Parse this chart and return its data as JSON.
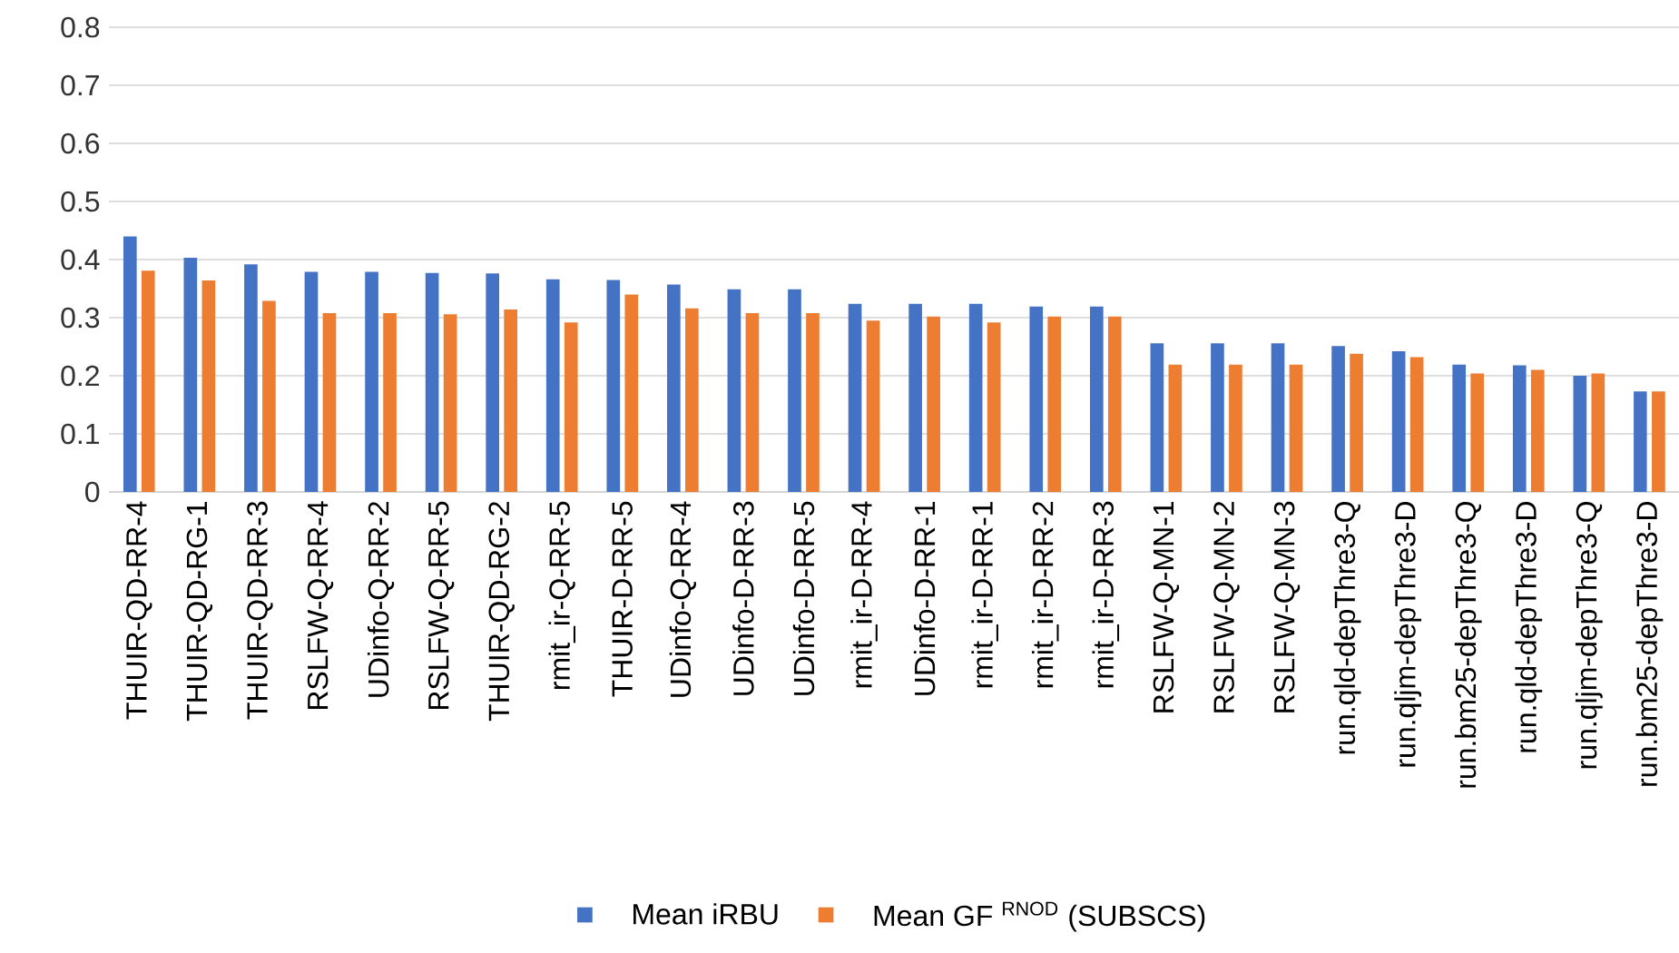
{
  "chart_data": {
    "type": "bar",
    "categories": [
      "THUIR-QD-RR-4",
      "THUIR-QD-RG-1",
      "THUIR-QD-RR-3",
      "RSLFW-Q-RR-4",
      "UDinfo-Q-RR-2",
      "RSLFW-Q-RR-5",
      "THUIR-QD-RG-2",
      "rmit_ir-Q-RR-5",
      "THUIR-D-RR-5",
      "UDinfo-Q-RR-4",
      "UDinfo-D-RR-3",
      "UDinfo-D-RR-5",
      "rmit_ir-D-RR-4",
      "UDinfo-D-RR-1",
      "rmit_ir-D-RR-1",
      "rmit_ir-D-RR-2",
      "rmit_ir-D-RR-3",
      "RSLFW-Q-MN-1",
      "RSLFW-Q-MN-2",
      "RSLFW-Q-MN-3",
      "run.qld-depThre3-Q",
      "run.qljm-depThre3-D",
      "run.bm25-depThre3-Q",
      "run.qld-depThre3-D",
      "run.qljm-depThre3-Q",
      "run.bm25-depThre3-D"
    ],
    "series": [
      {
        "name": "Mean iRBU",
        "color": "#4472c4",
        "values": [
          0.44,
          0.403,
          0.392,
          0.379,
          0.379,
          0.377,
          0.376,
          0.366,
          0.365,
          0.357,
          0.349,
          0.349,
          0.324,
          0.324,
          0.324,
          0.319,
          0.319,
          0.256,
          0.256,
          0.256,
          0.251,
          0.242,
          0.219,
          0.218,
          0.2,
          0.173
        ]
      },
      {
        "name": "Mean GF $^{RNOD}$ (SUBSCS)",
        "color": "#ed7d31",
        "values": [
          0.381,
          0.364,
          0.329,
          0.308,
          0.308,
          0.306,
          0.314,
          0.292,
          0.34,
          0.316,
          0.308,
          0.308,
          0.295,
          0.302,
          0.292,
          0.302,
          0.302,
          0.219,
          0.219,
          0.219,
          0.238,
          0.232,
          0.204,
          0.21,
          0.204,
          0.173
        ]
      }
    ],
    "ylim": [
      0,
      0.8
    ],
    "yticks": [
      0,
      0.1,
      0.2,
      0.3,
      0.4,
      0.5,
      0.6,
      0.7,
      0.8
    ],
    "grid": "y",
    "legend": "bottom"
  }
}
